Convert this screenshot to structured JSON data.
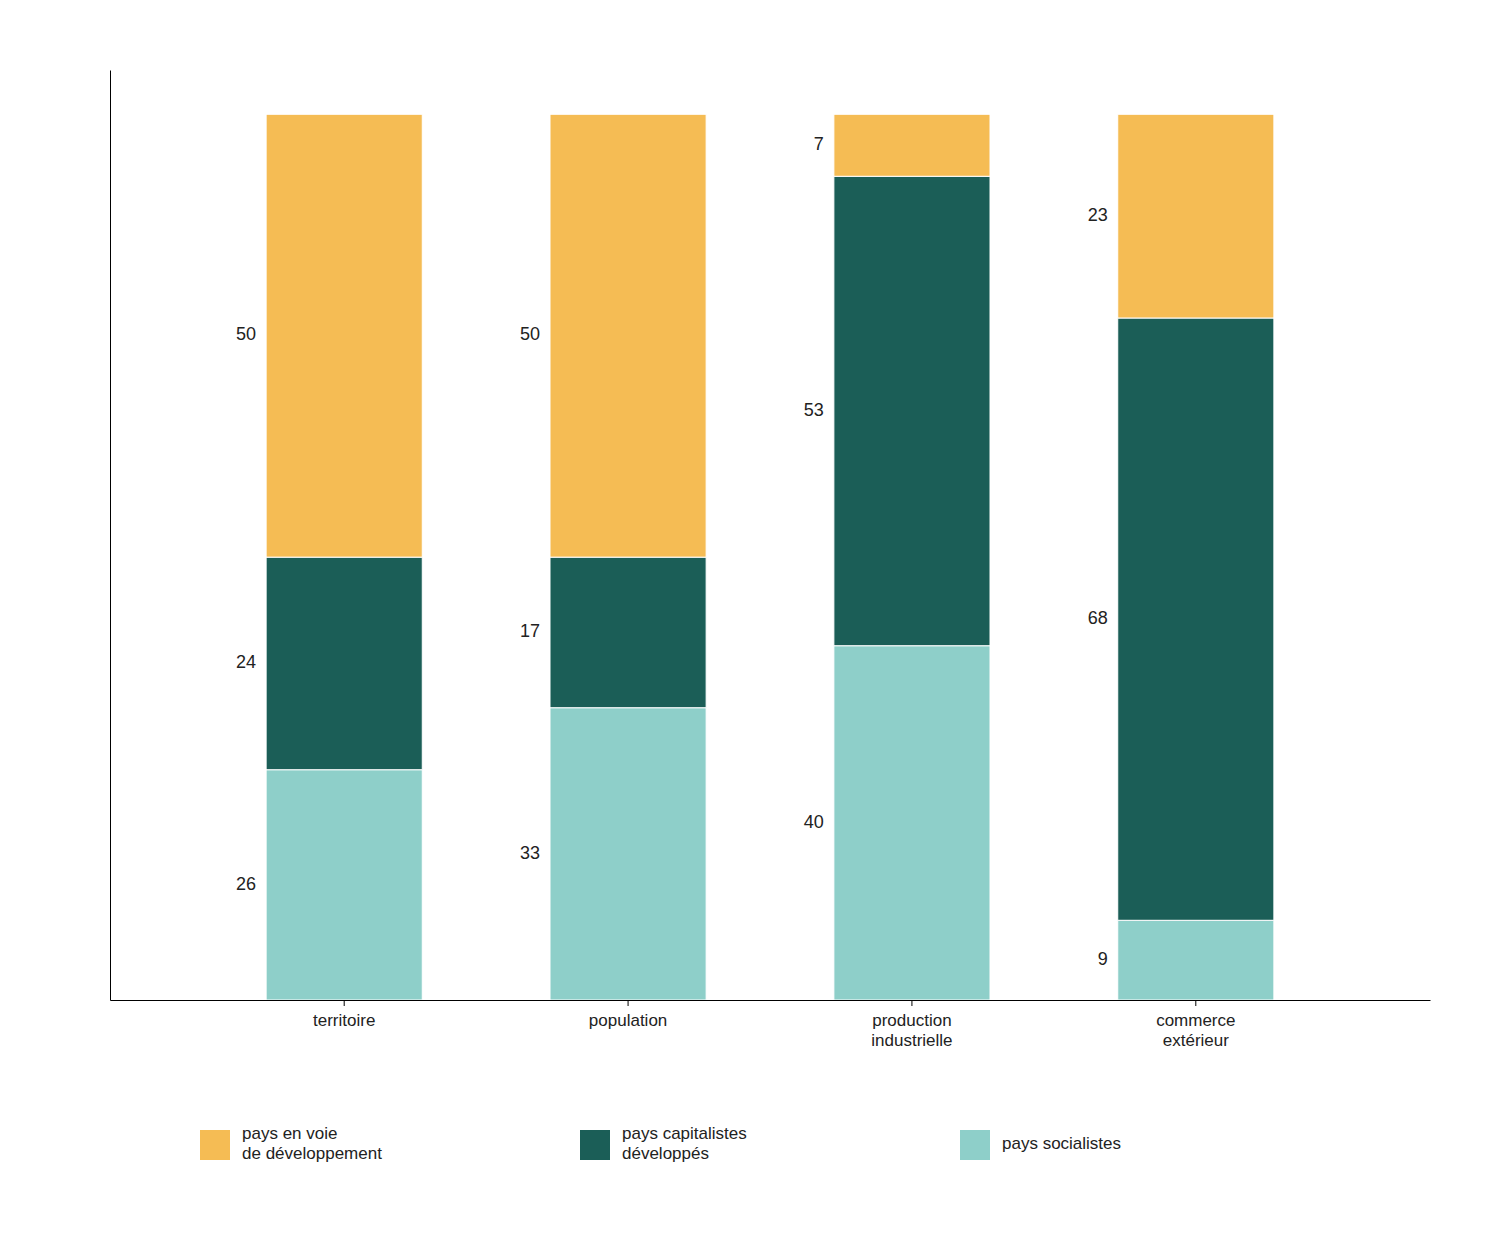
{
  "chart_data": {
    "type": "bar",
    "stacked": true,
    "categories": [
      "territoire",
      "population",
      "production\nindustrielle",
      "commerce\nextérieur"
    ],
    "series": [
      {
        "name": "pays socialistes",
        "color": "#8ECFC9",
        "values": [
          26,
          33,
          40,
          9
        ]
      },
      {
        "name": "pays capitalistes\ndéveloppés",
        "color": "#1B5E57",
        "values": [
          24,
          17,
          53,
          68
        ]
      },
      {
        "name": "pays en voie\nde développement",
        "color": "#F5BC54",
        "values": [
          50,
          50,
          7,
          23
        ]
      }
    ],
    "ylim": [
      0,
      105
    ],
    "data_labels": true,
    "tick_labels": "x",
    "legend": "bottom"
  }
}
